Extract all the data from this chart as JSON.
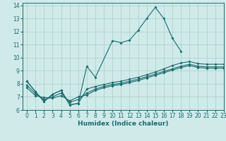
{
  "xlabel": "Humidex (Indice chaleur)",
  "ylabel": "",
  "xlim": [
    -0.5,
    23
  ],
  "ylim": [
    6,
    14.2
  ],
  "yticks": [
    6,
    7,
    8,
    9,
    10,
    11,
    12,
    13,
    14
  ],
  "xticks": [
    0,
    1,
    2,
    3,
    4,
    5,
    6,
    7,
    8,
    9,
    10,
    11,
    12,
    13,
    14,
    15,
    16,
    17,
    18,
    19,
    20,
    21,
    22,
    23
  ],
  "background_color": "#d0eaea",
  "grid_color": "#a8cccc",
  "line_color": "#1a6b6b",
  "line1_x": [
    0,
    1,
    2,
    3,
    4,
    5,
    6,
    7,
    8,
    10,
    11,
    12,
    13,
    14,
    15,
    16,
    17,
    18
  ],
  "line1_y": [
    8.2,
    7.4,
    6.65,
    7.2,
    7.5,
    6.4,
    6.5,
    9.35,
    8.5,
    11.3,
    11.15,
    11.35,
    12.1,
    13.0,
    13.85,
    13.0,
    11.5,
    10.5
  ],
  "line2_x": [
    0,
    1,
    2,
    3,
    4,
    5,
    6,
    7,
    8,
    9,
    10,
    11,
    12,
    13,
    14,
    15,
    16,
    17,
    18,
    19,
    20,
    21,
    22,
    23
  ],
  "line2_y": [
    8.2,
    7.4,
    6.65,
    7.2,
    7.5,
    6.4,
    6.5,
    7.6,
    7.8,
    7.95,
    8.1,
    8.2,
    8.35,
    8.5,
    8.7,
    8.9,
    9.15,
    9.4,
    9.6,
    9.7,
    9.55,
    9.5,
    9.5,
    9.5
  ],
  "line3_x": [
    0,
    1,
    2,
    3,
    4,
    5,
    6,
    7,
    8,
    9,
    10,
    11,
    12,
    13,
    14,
    15,
    16,
    17,
    18,
    19,
    20,
    21,
    22,
    23
  ],
  "line3_y": [
    7.9,
    7.25,
    6.8,
    7.0,
    7.3,
    6.6,
    6.8,
    7.3,
    7.6,
    7.8,
    7.95,
    8.05,
    8.2,
    8.35,
    8.55,
    8.75,
    8.95,
    9.15,
    9.35,
    9.5,
    9.35,
    9.3,
    9.3,
    9.3
  ],
  "line4_x": [
    0,
    1,
    2,
    3,
    4,
    5,
    6,
    7,
    8,
    9,
    10,
    11,
    12,
    13,
    14,
    15,
    16,
    17,
    18,
    19,
    20,
    21,
    22,
    23
  ],
  "line4_y": [
    7.7,
    7.1,
    6.95,
    6.9,
    7.1,
    6.7,
    7.0,
    7.15,
    7.5,
    7.7,
    7.85,
    7.95,
    8.1,
    8.25,
    8.45,
    8.65,
    8.85,
    9.05,
    9.25,
    9.4,
    9.25,
    9.2,
    9.2,
    9.2
  ]
}
